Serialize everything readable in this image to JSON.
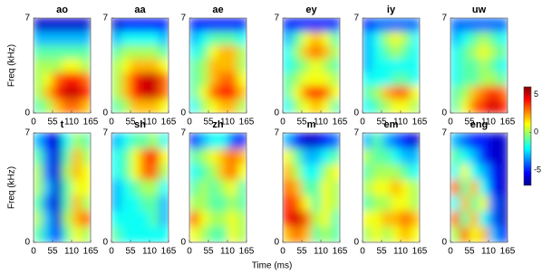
{
  "chart_data": [
    {
      "type": "heatmap",
      "title": "ao",
      "ylabel": "Freq (kHz)",
      "xlim": [
        0,
        165
      ],
      "xticks": [
        0,
        55,
        110,
        165
      ],
      "ylim": [
        0,
        7
      ],
      "yticks": [
        0,
        7
      ],
      "values": [
        [
          -6,
          -6,
          -6,
          -6,
          -6,
          -6
        ],
        [
          -3,
          -3,
          -3,
          -3,
          -3,
          -3
        ],
        [
          -1,
          -1,
          -1,
          -1,
          -1,
          -1
        ],
        [
          0,
          0,
          0,
          1,
          1,
          0
        ],
        [
          0,
          1,
          3,
          4,
          4,
          3
        ],
        [
          0,
          2,
          4,
          5,
          5,
          4
        ],
        [
          -1,
          0,
          2,
          3,
          3,
          2
        ]
      ]
    },
    {
      "type": "heatmap",
      "title": "aa",
      "xlim": [
        0,
        165
      ],
      "xticks": [
        0,
        55,
        110,
        165
      ],
      "ylim": [
        0,
        7
      ],
      "yticks": [
        0,
        7
      ],
      "values": [
        [
          -6,
          -5,
          -5,
          -5,
          -5,
          -5
        ],
        [
          -3,
          -2,
          -2,
          -2,
          -2,
          -3
        ],
        [
          -1,
          0,
          0,
          0,
          0,
          -1
        ],
        [
          0,
          1,
          2,
          2,
          2,
          1
        ],
        [
          0,
          2,
          4,
          5,
          5,
          3
        ],
        [
          0,
          2,
          4,
          5,
          5,
          3
        ],
        [
          -1,
          0,
          2,
          2,
          2,
          1
        ]
      ]
    },
    {
      "type": "heatmap",
      "title": "ae",
      "xlim": [
        0,
        165
      ],
      "xticks": [
        0,
        55,
        110,
        165
      ],
      "ylim": [
        0,
        7
      ],
      "yticks": [
        0,
        7
      ],
      "values": [
        [
          -5,
          -5,
          -5,
          -5,
          -5,
          -5
        ],
        [
          -3,
          -2,
          -1,
          -1,
          -1,
          -2
        ],
        [
          -2,
          -1,
          1,
          2,
          2,
          0
        ],
        [
          -1,
          0,
          2,
          2,
          2,
          0
        ],
        [
          -1,
          0,
          2,
          3,
          3,
          1
        ],
        [
          -1,
          1,
          3,
          4,
          4,
          2
        ],
        [
          -2,
          0,
          1,
          2,
          2,
          0
        ]
      ]
    },
    {
      "type": "heatmap",
      "title": "ey",
      "xlim": [
        0,
        165
      ],
      "xticks": [
        0,
        55,
        110,
        165
      ],
      "ylim": [
        0,
        7
      ],
      "yticks": [
        0,
        7
      ],
      "values": [
        [
          -5,
          -5,
          -5,
          -5,
          -5,
          -5
        ],
        [
          -3,
          -1,
          1,
          2,
          1,
          -1
        ],
        [
          -2,
          0,
          2,
          3,
          2,
          0
        ],
        [
          -2,
          -1,
          0,
          1,
          0,
          -1
        ],
        [
          -1,
          0,
          1,
          1,
          1,
          0
        ],
        [
          -1,
          1,
          3,
          4,
          3,
          1
        ],
        [
          -2,
          0,
          1,
          2,
          1,
          -1
        ]
      ]
    },
    {
      "type": "heatmap",
      "title": "iy",
      "xlim": [
        0,
        165
      ],
      "xticks": [
        0,
        55,
        110,
        165
      ],
      "ylim": [
        0,
        7
      ],
      "yticks": [
        0,
        7
      ],
      "values": [
        [
          -5,
          -4,
          -4,
          -4,
          -4,
          -4
        ],
        [
          -3,
          -2,
          0,
          1,
          0,
          -2
        ],
        [
          -3,
          -2,
          -1,
          0,
          -1,
          -2
        ],
        [
          -3,
          -2,
          -2,
          -2,
          -2,
          -2
        ],
        [
          -2,
          -2,
          -2,
          -1,
          -1,
          -2
        ],
        [
          -1,
          0,
          2,
          3,
          3,
          1
        ],
        [
          -2,
          -1,
          0,
          1,
          1,
          0
        ]
      ]
    },
    {
      "type": "heatmap",
      "title": "uw",
      "xlim": [
        0,
        165
      ],
      "xticks": [
        0,
        55,
        110,
        165
      ],
      "ylim": [
        0,
        7
      ],
      "yticks": [
        0,
        7
      ],
      "values": [
        [
          -4,
          -4,
          -4,
          -4,
          -4,
          -4
        ],
        [
          -3,
          -2,
          -1,
          0,
          -1,
          -2
        ],
        [
          -2,
          -1,
          0,
          1,
          0,
          -1
        ],
        [
          -2,
          -1,
          -1,
          0,
          -1,
          -2
        ],
        [
          -2,
          -1,
          -1,
          0,
          0,
          -1
        ],
        [
          -1,
          0,
          2,
          3,
          4,
          3
        ],
        [
          -1,
          1,
          3,
          4,
          5,
          4
        ]
      ]
    },
    {
      "type": "heatmap",
      "title": "t",
      "ylabel": "Freq (kHz)",
      "xlim": [
        0,
        165
      ],
      "xticks": [
        0,
        55,
        110,
        165
      ],
      "ylim": [
        0,
        7
      ],
      "yticks": [
        0,
        7
      ],
      "values": [
        [
          -3,
          -5,
          -6,
          -2,
          0,
          -1
        ],
        [
          -1,
          -4,
          -6,
          -1,
          2,
          0
        ],
        [
          0,
          -4,
          -6,
          0,
          2,
          1
        ],
        [
          0,
          -3,
          -6,
          -1,
          1,
          1
        ],
        [
          -1,
          -4,
          -6,
          -1,
          2,
          0
        ],
        [
          0,
          -3,
          -6,
          0,
          2,
          3
        ],
        [
          -1,
          -3,
          -5,
          -1,
          1,
          0
        ]
      ]
    },
    {
      "type": "heatmap",
      "title": "sh",
      "xlim": [
        0,
        165
      ],
      "xticks": [
        0,
        55,
        110,
        165
      ],
      "ylim": [
        0,
        7
      ],
      "yticks": [
        0,
        7
      ],
      "values": [
        [
          -3,
          -2,
          -1,
          -1,
          0,
          -2
        ],
        [
          -2,
          -1,
          1,
          3,
          4,
          1
        ],
        [
          -2,
          -1,
          1,
          3,
          3,
          0
        ],
        [
          -3,
          -2,
          -1,
          0,
          0,
          -2
        ],
        [
          -3,
          -2,
          -2,
          -1,
          -1,
          -3
        ],
        [
          -2,
          -2,
          -2,
          -2,
          -1,
          -3
        ],
        [
          -1,
          -2,
          -2,
          -2,
          -2,
          -2
        ]
      ]
    },
    {
      "type": "heatmap",
      "title": "zh",
      "xlim": [
        0,
        165
      ],
      "xticks": [
        0,
        55,
        110,
        165
      ],
      "ylim": [
        0,
        7
      ],
      "yticks": [
        0,
        7
      ],
      "values": [
        [
          -5,
          -3,
          -2,
          -2,
          -4,
          -5
        ],
        [
          -1,
          0,
          1,
          2,
          3,
          2
        ],
        [
          -2,
          -1,
          0,
          2,
          3,
          1
        ],
        [
          -1,
          0,
          -1,
          0,
          1,
          -1
        ],
        [
          0,
          0,
          -1,
          -1,
          0,
          -1
        ],
        [
          3,
          1,
          0,
          0,
          1,
          0
        ],
        [
          1,
          0,
          -1,
          -1,
          1,
          0
        ]
      ]
    },
    {
      "type": "heatmap",
      "title": "m",
      "xlim": [
        0,
        165
      ],
      "xticks": [
        0,
        55,
        110,
        165
      ],
      "ylim": [
        0,
        7
      ],
      "yticks": [
        0,
        7
      ],
      "values": [
        [
          -3,
          -5,
          -6,
          -6,
          -5,
          -4
        ],
        [
          1,
          -1,
          -3,
          -3,
          -2,
          -1
        ],
        [
          2,
          0,
          -2,
          -2,
          0,
          1
        ],
        [
          3,
          2,
          -1,
          -1,
          1,
          0
        ],
        [
          4,
          3,
          1,
          -1,
          1,
          0
        ],
        [
          4,
          5,
          3,
          0,
          1,
          -1
        ],
        [
          2,
          3,
          2,
          -1,
          0,
          -1
        ]
      ]
    },
    {
      "type": "heatmap",
      "title": "em",
      "xlim": [
        0,
        165
      ],
      "xticks": [
        0,
        55,
        110,
        165
      ],
      "ylim": [
        0,
        7
      ],
      "yticks": [
        0,
        7
      ],
      "values": [
        [
          -3,
          -1,
          -3,
          -4,
          -5,
          -6
        ],
        [
          0,
          -1,
          -1,
          -2,
          -3,
          -3
        ],
        [
          -1,
          0,
          0,
          0,
          -1,
          -2
        ],
        [
          0,
          1,
          1,
          2,
          1,
          0
        ],
        [
          -1,
          0,
          0,
          1,
          1,
          0
        ],
        [
          1,
          1,
          2,
          2,
          3,
          2
        ],
        [
          0,
          1,
          0,
          1,
          2,
          1
        ]
      ]
    },
    {
      "type": "heatmap",
      "title": "eng",
      "xlim": [
        0,
        165
      ],
      "xticks": [
        0,
        55,
        110,
        165
      ],
      "ylim": [
        0,
        7
      ],
      "yticks": [
        0,
        7
      ],
      "values": [
        [
          -3,
          -4,
          -5,
          -5,
          -6,
          -6
        ],
        [
          -1,
          -2,
          -3,
          -5,
          -6,
          -6
        ],
        [
          -2,
          1,
          -2,
          -3,
          -5,
          -6
        ],
        [
          3,
          -1,
          2,
          -2,
          -5,
          -6
        ],
        [
          -2,
          2,
          -1,
          1,
          -4,
          -6
        ],
        [
          3,
          -1,
          2,
          -2,
          -4,
          -6
        ],
        [
          0,
          3,
          1,
          2,
          -3,
          -5
        ]
      ]
    }
  ],
  "xlabel": "Time (ms)",
  "colorbar": {
    "colormap": "jet",
    "range": [
      -7,
      6
    ],
    "ticks": [
      5,
      0,
      -5
    ]
  }
}
